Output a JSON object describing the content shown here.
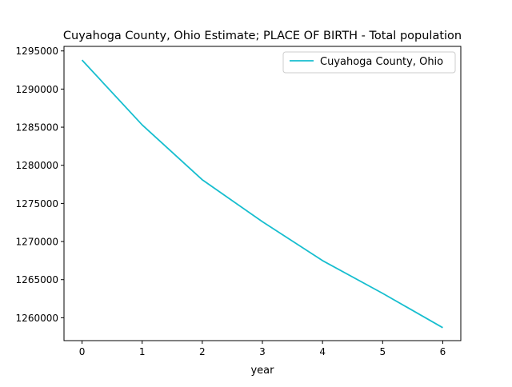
{
  "chart_data": {
    "type": "line",
    "title": "Cuyahoga County, Ohio Estimate; PLACE OF BIRTH - Total population",
    "xlabel": "year",
    "ylabel": "",
    "x": [
      0,
      1,
      2,
      3,
      4,
      5,
      6
    ],
    "xticks": [
      "0",
      "1",
      "2",
      "3",
      "4",
      "5",
      "6"
    ],
    "yticks": [
      "1260000",
      "1265000",
      "1270000",
      "1275000",
      "1280000",
      "1285000",
      "1290000",
      "1295000"
    ],
    "xlim": [
      -0.3,
      6.3
    ],
    "ylim": [
      1257000,
      1295600
    ],
    "grid": false,
    "legend_position": "top-right",
    "series": [
      {
        "name": "Cuyahoga County, Ohio",
        "color": "#17becf",
        "values": [
          1293800,
          1285300,
          1278100,
          1272600,
          1267500,
          1263200,
          1258700
        ]
      }
    ]
  }
}
